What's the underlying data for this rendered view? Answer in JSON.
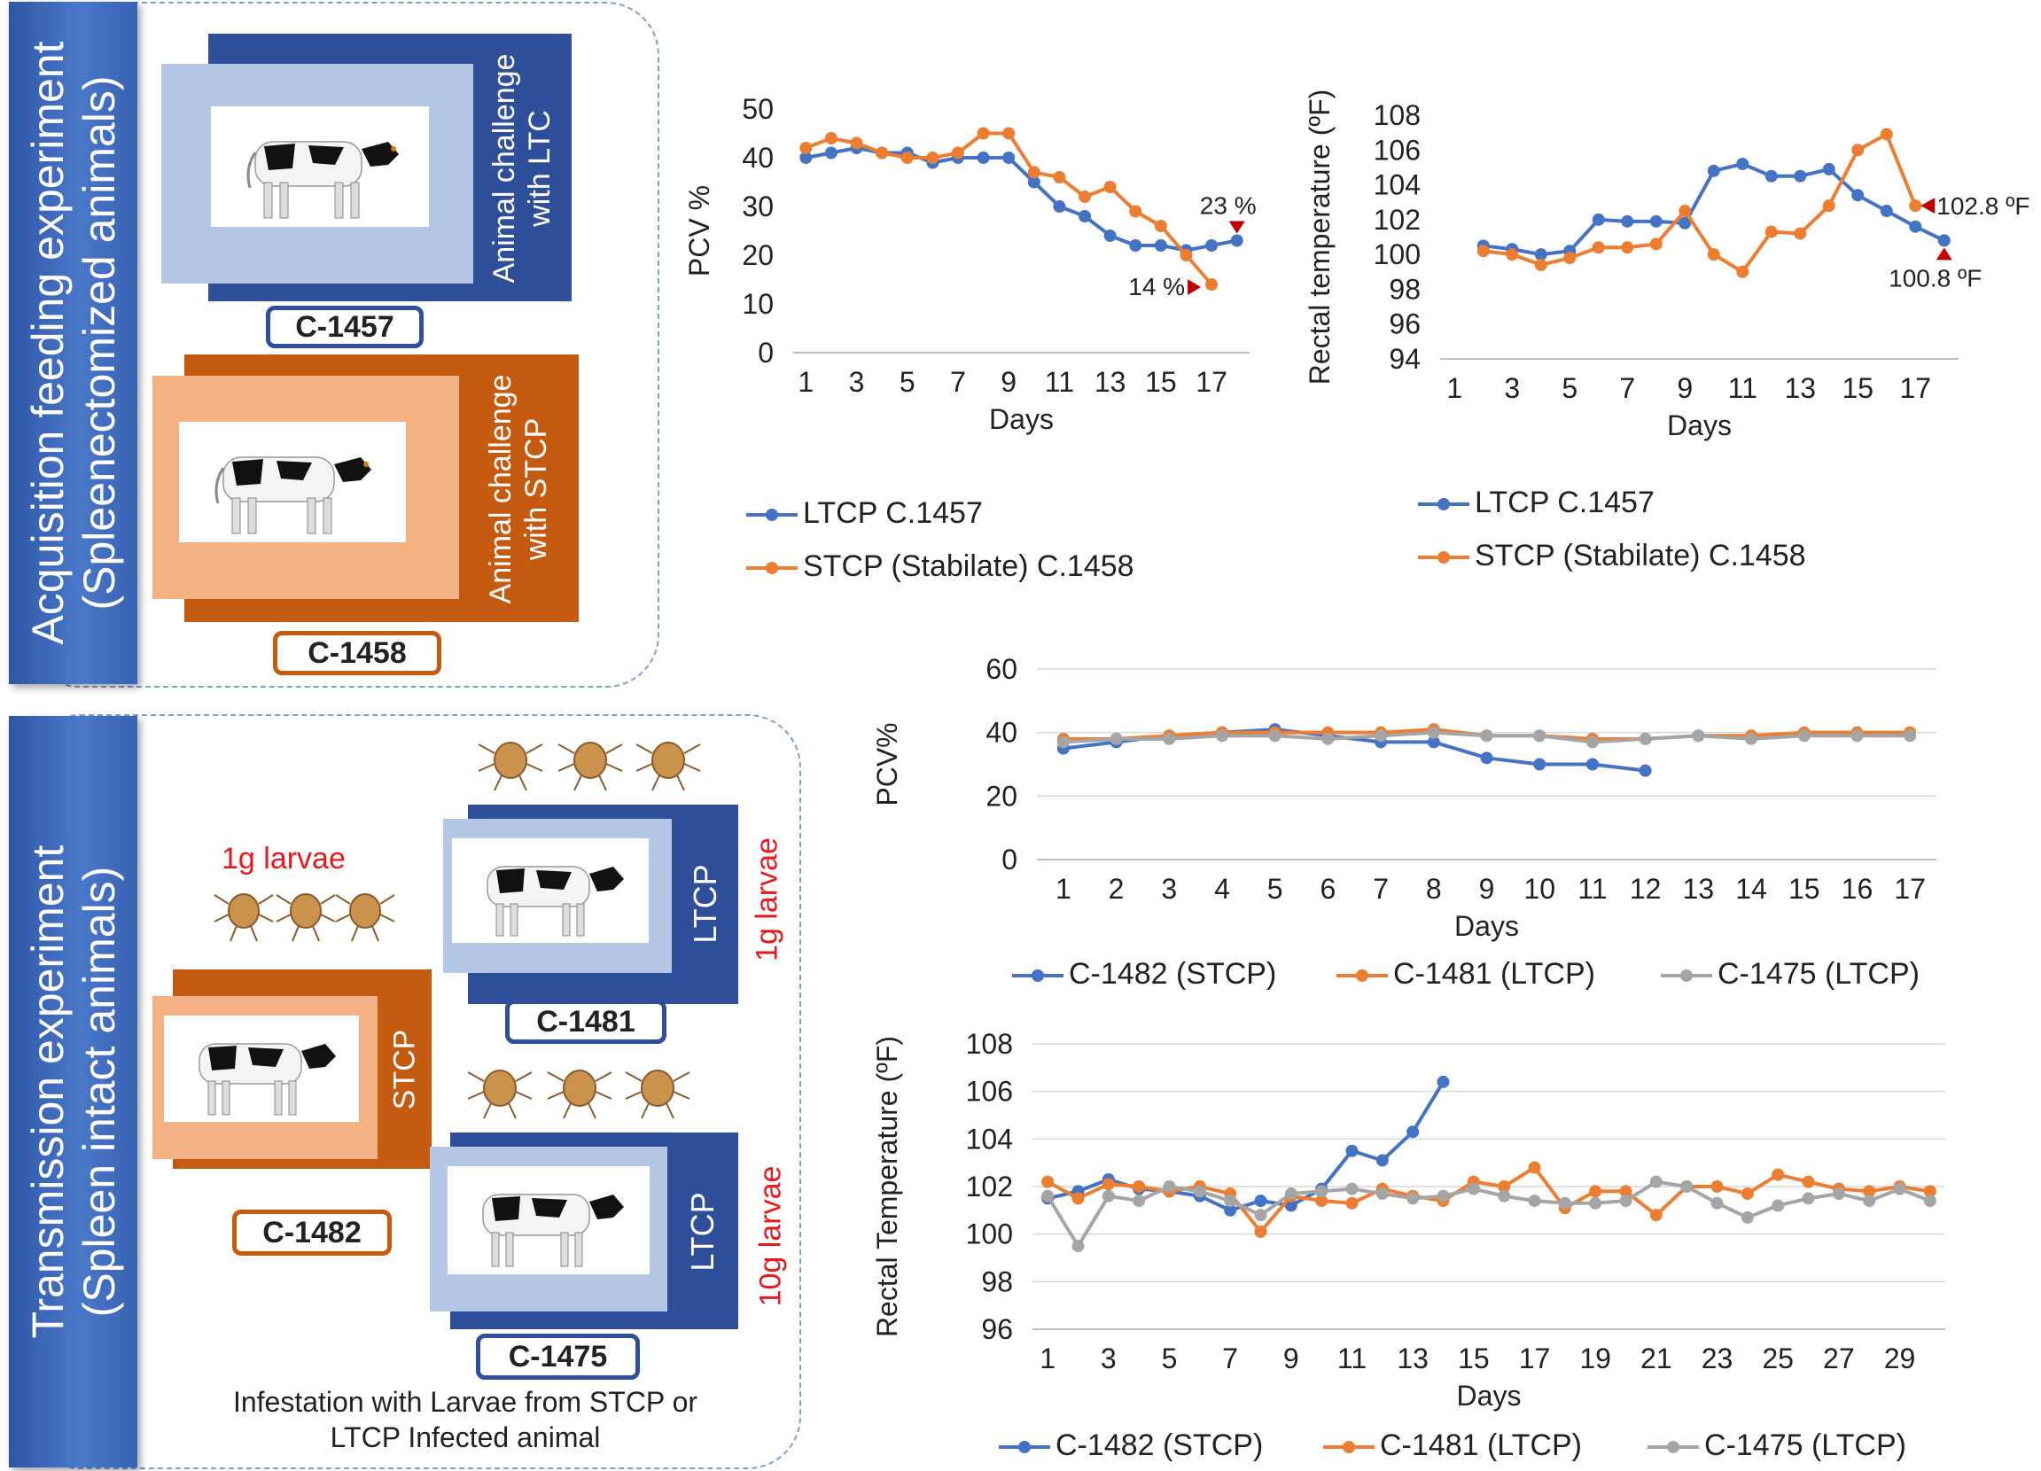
{
  "panels": {
    "top": {
      "title": "Acquisition feeding experiment\n(Spleenectomized animals)",
      "animal1": {
        "label": "Animal challenge\nwith LTC",
        "id": "C-1457"
      },
      "animal2": {
        "label": "Animal challenge\nwith STCP",
        "id": "C-1458"
      }
    },
    "bottom": {
      "title": "Transmission experiment\n(Spleen intact animals)",
      "larvae_left": "1g larvae",
      "larvae_ltcp1": "1g larvae",
      "larvae_ltcp2": "10g larvae",
      "stcp_label": "STCP",
      "ltcp_label1": "LTCP",
      "ltcp_label2": "LTCP",
      "id_1482": "C-1482",
      "id_1481": "C-1481",
      "id_1475": "C-1475",
      "caption": "Infestation with Larvae from STCP or\nLTCP Infected animal"
    }
  },
  "colors": {
    "blue": "#4472c4",
    "orange": "#ed7d31",
    "gray": "#a5a5a5",
    "dark_blue": "#2f4f9a",
    "dark_orange": "#c55a11",
    "light_blue": "#b4c7e7",
    "light_orange": "#f4b183"
  },
  "chart_data": [
    {
      "type": "line",
      "ylabel": "PCV %",
      "xlabel": "Days",
      "ylim": [
        0,
        50
      ],
      "yticks": [
        0,
        10,
        20,
        30,
        40,
        50
      ],
      "xticks": [
        1,
        3,
        5,
        7,
        9,
        11,
        13,
        15,
        17
      ],
      "x": [
        1,
        2,
        3,
        4,
        5,
        6,
        7,
        8,
        9,
        10,
        11,
        12,
        13,
        14,
        15,
        16,
        17,
        18
      ],
      "series": [
        {
          "name": "LTCP C.1457",
          "values": [
            40,
            41,
            42,
            41,
            41,
            39,
            40,
            40,
            40,
            35,
            30,
            28,
            24,
            22,
            22,
            21,
            22,
            23
          ]
        },
        {
          "name": "STCP (Stabilate) C.1458",
          "values": [
            42,
            44,
            43,
            41,
            40,
            40,
            41,
            45,
            45,
            37,
            36,
            32,
            34,
            29,
            26,
            20,
            14,
            null
          ]
        }
      ],
      "annotations": [
        "23 %",
        "14 %"
      ]
    },
    {
      "type": "line",
      "ylabel": "Rectal temperature (ºF)",
      "xlabel": "Days",
      "ylim": [
        94,
        108
      ],
      "yticks": [
        94,
        96,
        98,
        100,
        102,
        104,
        106,
        108
      ],
      "xticks": [
        1,
        3,
        5,
        7,
        9,
        11,
        13,
        15,
        17
      ],
      "x": [
        1,
        2,
        3,
        4,
        5,
        6,
        7,
        8,
        9,
        10,
        11,
        12,
        13,
        14,
        15,
        16,
        17,
        18
      ],
      "series": [
        {
          "name": "LTCP C.1457",
          "values": [
            null,
            100.5,
            100.3,
            100.0,
            100.2,
            102.0,
            101.9,
            101.9,
            101.8,
            104.8,
            105.2,
            104.5,
            104.5,
            104.9,
            103.4,
            102.5,
            101.6,
            100.8
          ]
        },
        {
          "name": "STCP (Stabilate) C.1458",
          "values": [
            null,
            100.2,
            100.0,
            99.4,
            99.8,
            100.4,
            100.4,
            100.6,
            102.5,
            100.0,
            99.0,
            101.3,
            101.2,
            102.8,
            106.0,
            106.9,
            102.8,
            null
          ]
        }
      ],
      "annotations": [
        "102.8 ºF",
        "100.8 ºF"
      ]
    },
    {
      "type": "line",
      "ylabel": "PCV%",
      "xlabel": "Days",
      "ylim": [
        0,
        60
      ],
      "yticks": [
        0,
        20,
        40,
        60
      ],
      "xticks": [
        1,
        2,
        3,
        4,
        5,
        6,
        7,
        8,
        9,
        10,
        11,
        12,
        13,
        14,
        15,
        16,
        17
      ],
      "x": [
        1,
        2,
        3,
        4,
        5,
        6,
        7,
        8,
        9,
        10,
        11,
        12,
        13,
        14,
        15,
        16,
        17
      ],
      "series": [
        {
          "name": "C-1482 (STCP)",
          "values": [
            35,
            37,
            39,
            40,
            41,
            39,
            37,
            37,
            32,
            30,
            30,
            28,
            null,
            null,
            null,
            null,
            null
          ]
        },
        {
          "name": "C-1481 (LTCP)",
          "values": [
            38,
            38,
            39,
            40,
            40,
            40,
            40,
            41,
            39,
            39,
            38,
            38,
            39,
            39,
            40,
            40,
            40
          ]
        },
        {
          "name": "C-1475 (LTCP)",
          "values": [
            37,
            38,
            38,
            39,
            39,
            38,
            39,
            40,
            39,
            39,
            37,
            38,
            39,
            38,
            39,
            39,
            39
          ]
        }
      ]
    },
    {
      "type": "line",
      "ylabel": "Rectal Temperature (ºF)",
      "xlabel": "Days",
      "ylim": [
        96,
        108
      ],
      "yticks": [
        96,
        98,
        100,
        102,
        104,
        106,
        108
      ],
      "xticks": [
        1,
        3,
        5,
        7,
        9,
        11,
        13,
        15,
        17,
        19,
        21,
        23,
        25,
        27,
        29
      ],
      "x": [
        1,
        2,
        3,
        4,
        5,
        6,
        7,
        8,
        9,
        10,
        11,
        12,
        13,
        14,
        15,
        16,
        17,
        18,
        19,
        20,
        21,
        22,
        23,
        24,
        25,
        26,
        27,
        28,
        29,
        30
      ],
      "series": [
        {
          "name": "C-1482 (STCP)",
          "values": [
            101.5,
            101.8,
            102.3,
            101.9,
            101.8,
            101.6,
            101.0,
            101.4,
            101.2,
            101.9,
            103.5,
            103.1,
            104.3,
            106.4,
            null,
            null,
            null,
            null,
            null,
            null,
            null,
            null,
            null,
            null,
            null,
            null,
            null,
            null,
            null,
            null
          ]
        },
        {
          "name": "C-1481 (LTCP)",
          "values": [
            102.2,
            101.5,
            102.1,
            102.0,
            101.8,
            102.0,
            101.7,
            100.1,
            101.6,
            101.4,
            101.3,
            101.9,
            101.6,
            101.4,
            102.2,
            102.0,
            102.8,
            101.1,
            101.8,
            101.8,
            100.8,
            102.0,
            102.0,
            101.7,
            102.5,
            102.2,
            101.9,
            101.8,
            102.0,
            101.8
          ]
        },
        {
          "name": "C-1475 (LTCP)",
          "values": [
            101.6,
            99.5,
            101.6,
            101.4,
            102.0,
            101.8,
            101.4,
            100.8,
            101.7,
            101.8,
            101.9,
            101.7,
            101.5,
            101.6,
            101.9,
            101.6,
            101.4,
            101.3,
            101.3,
            101.4,
            102.2,
            102.0,
            101.3,
            100.7,
            101.2,
            101.5,
            101.7,
            101.4,
            101.9,
            101.4
          ]
        }
      ]
    }
  ]
}
